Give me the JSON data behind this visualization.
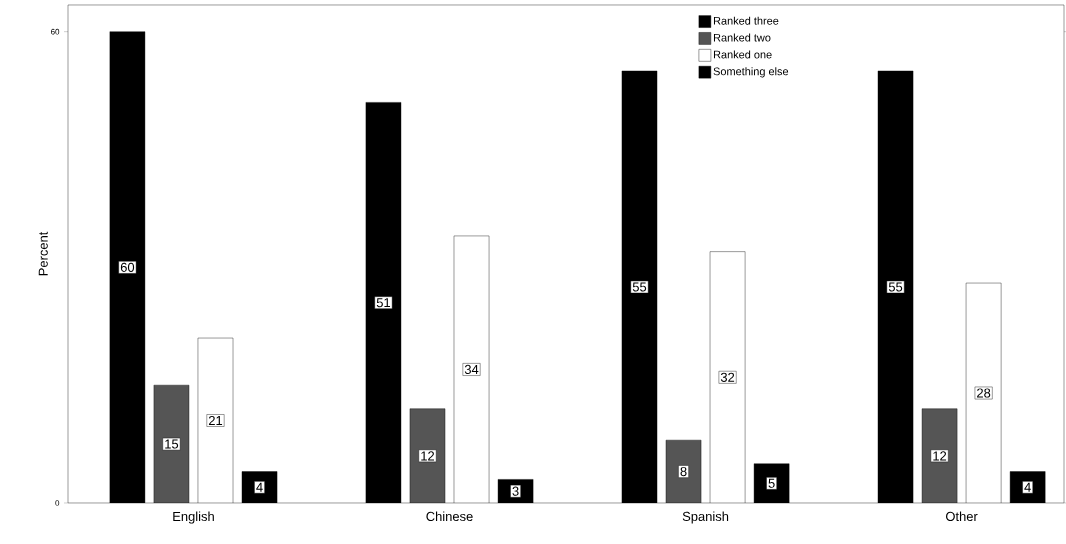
{
  "chart_data": {
    "type": "bar",
    "ylabel": "Percent",
    "categories": [
      "English",
      "Chinese",
      "Spanish",
      "Other"
    ],
    "series": [
      {
        "name": "Ranked three",
        "color": "#000000",
        "values": [
          60,
          51,
          55,
          55
        ]
      },
      {
        "name": "Ranked two",
        "color": "#555555",
        "values": [
          15,
          12,
          8,
          12
        ]
      },
      {
        "name": "Ranked one",
        "color": "#ffffff",
        "values": [
          21,
          34,
          32,
          28
        ]
      },
      {
        "name": "Something else",
        "color": "#000000",
        "values": [
          4,
          3,
          5,
          4
        ]
      }
    ],
    "ylim": [
      0,
      63.4
    ],
    "yticks": [
      0,
      60
    ],
    "data_labels": true,
    "legend": "top right"
  }
}
